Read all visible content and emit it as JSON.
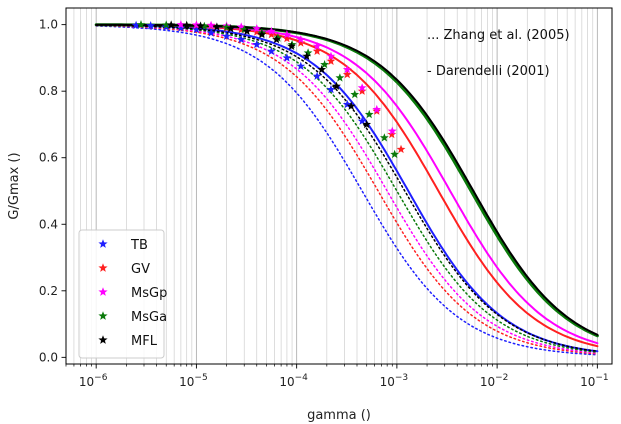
{
  "chart_data": {
    "type": "scatter",
    "xlabel": "gamma ()",
    "ylabel": "G/Gmax ()",
    "xscale": "log",
    "xlim": [
      5e-07,
      0.14
    ],
    "ylim": [
      -0.02,
      1.05
    ],
    "grid": "x-major-and-minor",
    "legend_placement": "bottom-left",
    "x_ticks": [
      1e-06,
      1e-05,
      0.0001,
      0.001,
      0.01,
      0.1
    ],
    "x_tick_labels": [
      {
        "base": "10",
        "exp": "−6"
      },
      {
        "base": "10",
        "exp": "−5"
      },
      {
        "base": "10",
        "exp": "−4"
      },
      {
        "base": "10",
        "exp": "−3"
      },
      {
        "base": "10",
        "exp": "−2"
      },
      {
        "base": "10",
        "exp": "−1"
      }
    ],
    "y_ticks": [
      0.0,
      0.2,
      0.4,
      0.6,
      0.8,
      1.0
    ],
    "y_tick_labels": [
      "0.0",
      "0.2",
      "0.4",
      "0.6",
      "0.8",
      "1.0"
    ],
    "annotations": [
      "... Zhang et al. (2005)",
      "- Darendelli (2001)"
    ],
    "curve_x_range": [
      1e-06,
      0.1
    ],
    "series": [
      {
        "name": "TB",
        "color": "#1f1fff",
        "marker_x": [
          2.5e-06,
          3.5e-06,
          5e-06,
          7e-06,
          1e-05,
          1.4e-05,
          2e-05,
          2.8e-05,
          4e-05,
          5.6e-05,
          8e-05,
          0.00011,
          0.00016,
          0.00022,
          0.00032,
          0.00045
        ],
        "marker_y": [
          0.998,
          0.997,
          0.993,
          0.99,
          0.985,
          0.975,
          0.965,
          0.955,
          0.94,
          0.92,
          0.9,
          0.875,
          0.845,
          0.805,
          0.76,
          0.71
        ],
        "zhang_ref": 0.00045,
        "zhang_a": 0.9,
        "darendeli_ref": 0.0013,
        "darendeli_a": 0.92
      },
      {
        "name": "GV",
        "color": "#ff2020",
        "marker_x": [
          1e-05,
          1.4e-05,
          2e-05,
          2.8e-05,
          4e-05,
          5.6e-05,
          8e-05,
          0.00011,
          0.00016,
          0.00022,
          0.00032,
          0.00045,
          0.00063,
          0.00089,
          0.0011
        ],
        "marker_y": [
          0.998,
          0.996,
          0.99,
          0.985,
          0.978,
          0.97,
          0.958,
          0.945,
          0.92,
          0.89,
          0.85,
          0.8,
          0.74,
          0.67,
          0.625
        ],
        "zhang_ref": 0.00065,
        "zhang_a": 0.9,
        "darendeli_ref": 0.0026,
        "darendeli_a": 0.92
      },
      {
        "name": "MsGp",
        "color": "#ff00ff",
        "marker_x": [
          7e-06,
          1e-05,
          1.4e-05,
          2e-05,
          2.8e-05,
          4e-05,
          5.6e-05,
          8e-05,
          0.00011,
          0.00016,
          0.00022,
          0.00032,
          0.00045,
          0.00063,
          0.0009
        ],
        "marker_y": [
          1.0,
          0.999,
          0.998,
          0.996,
          0.993,
          0.988,
          0.98,
          0.97,
          0.955,
          0.935,
          0.905,
          0.865,
          0.81,
          0.745,
          0.68
        ],
        "zhang_ref": 0.0008,
        "zhang_a": 0.9,
        "darendeli_ref": 0.0034,
        "darendeli_a": 0.92
      },
      {
        "name": "MsGa",
        "color": "#0a7a0a",
        "marker_x": [
          2.8e-06,
          5e-06,
          8e-06,
          1.2e-05,
          2e-05,
          3e-05,
          4.5e-05,
          6.5e-05,
          9e-05,
          0.00013,
          0.00019,
          0.00027,
          0.00038,
          0.00053,
          0.00075,
          0.00095
        ],
        "marker_y": [
          1.0,
          0.999,
          0.998,
          0.995,
          0.992,
          0.985,
          0.975,
          0.96,
          0.94,
          0.915,
          0.88,
          0.84,
          0.79,
          0.73,
          0.66,
          0.61
        ],
        "zhang_ref": 0.001,
        "zhang_a": 0.9,
        "darendeli_ref": 0.0055,
        "darendeli_a": 0.92
      },
      {
        "name": "MFL",
        "color": "#000000",
        "marker_x": [
          5.6e-06,
          8e-06,
          1.1e-05,
          1.6e-05,
          2.2e-05,
          3.2e-05,
          4.5e-05,
          6.3e-05,
          8.9e-05,
          0.000126,
          0.000178,
          0.00025,
          0.00035,
          0.0005
        ],
        "marker_y": [
          0.999,
          0.998,
          0.996,
          0.993,
          0.988,
          0.98,
          0.97,
          0.955,
          0.935,
          0.905,
          0.865,
          0.815,
          0.755,
          0.7
        ],
        "zhang_ref": 0.0012,
        "zhang_a": 0.9,
        "darendeli_ref": 0.0058,
        "darendeli_a": 0.92
      }
    ]
  }
}
